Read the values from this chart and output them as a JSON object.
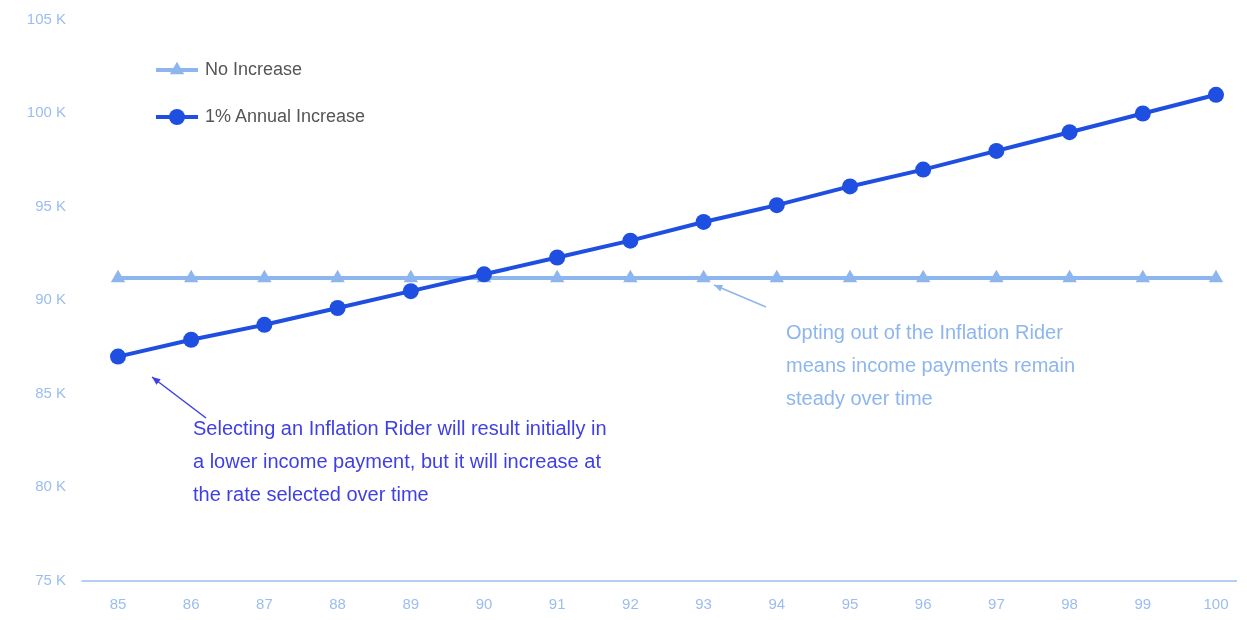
{
  "chart_data": {
    "type": "line",
    "categories": [
      "85",
      "86",
      "87",
      "88",
      "89",
      "90",
      "91",
      "92",
      "93",
      "94",
      "95",
      "96",
      "97",
      "98",
      "99",
      "100"
    ],
    "series": [
      {
        "name": "No Increase",
        "color": "#8db6ee",
        "marker": "triangle",
        "values": [
          91.2,
          91.2,
          91.2,
          91.2,
          91.2,
          91.2,
          91.2,
          91.2,
          91.2,
          91.2,
          91.2,
          91.2,
          91.2,
          91.2,
          91.2,
          91.2
        ]
      },
      {
        "name": "1% Annual Increase",
        "color": "#1f4fe0",
        "marker": "circle",
        "values": [
          87.0,
          87.9,
          88.7,
          89.6,
          90.5,
          91.4,
          92.3,
          93.2,
          94.2,
          95.1,
          96.1,
          97.0,
          98.0,
          99.0,
          100.0,
          101.0
        ]
      }
    ],
    "ylim": [
      75,
      105
    ],
    "yticks": [
      {
        "value": 75,
        "label": "75 K"
      },
      {
        "value": 80,
        "label": "80 K"
      },
      {
        "value": 85,
        "label": "85 K"
      },
      {
        "value": 90,
        "label": "90 K"
      },
      {
        "value": 95,
        "label": "95 K"
      },
      {
        "value": 100,
        "label": "100 K"
      },
      {
        "value": 105,
        "label": "105 K"
      }
    ],
    "grid": false,
    "legend": "top left",
    "line_style": "solid",
    "annotations": [
      "Selecting an Inflation Rider will result initially in\na lower income payment, but it will increase at\nthe rate selected over time",
      "Opting out of the Inflation Rider\nmeans income payments remain\nsteady over time"
    ]
  }
}
